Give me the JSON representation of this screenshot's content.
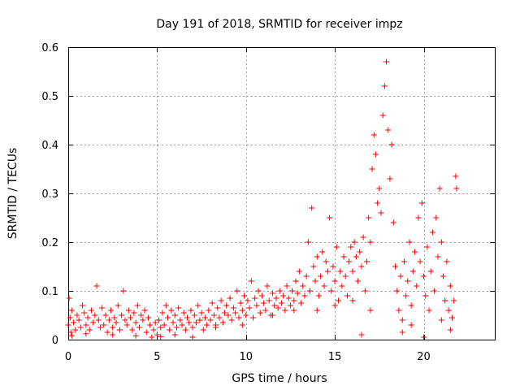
{
  "chart_data": {
    "type": "scatter",
    "title": "Day 191 of 2018, SRMTID for receiver impz",
    "xlabel": "GPS time / hours",
    "ylabel": "SRMTID / TECUs",
    "xlim": [
      0,
      24
    ],
    "ylim": [
      0,
      0.6
    ],
    "x_ticks": [
      0,
      5,
      10,
      15,
      20
    ],
    "x_tick_labels": [
      "0",
      "5",
      "10",
      "15",
      "20"
    ],
    "y_ticks": [
      0,
      0.1,
      0.2,
      0.3,
      0.4,
      0.5,
      0.6
    ],
    "y_tick_labels": [
      "0",
      "0.1",
      "0.2",
      "0.3",
      "0.4",
      "0.5",
      "0.6"
    ],
    "grid": true,
    "marker": "+",
    "series": [
      {
        "name": "SRMTID",
        "color": "#ff0000",
        "points": [
          [
            0.0,
            0.03
          ],
          [
            0.05,
            0.085
          ],
          [
            0.1,
            0.045
          ],
          [
            0.15,
            0.015
          ],
          [
            0.2,
            0.06
          ],
          [
            0.3,
            0.035
          ],
          [
            0.4,
            0.02
          ],
          [
            0.5,
            0.05
          ],
          [
            0.6,
            0.04
          ],
          [
            0.7,
            0.025
          ],
          [
            0.8,
            0.07
          ],
          [
            0.9,
            0.055
          ],
          [
            1.0,
            0.03
          ],
          [
            1.1,
            0.045
          ],
          [
            1.2,
            0.02
          ],
          [
            1.3,
            0.06
          ],
          [
            1.4,
            0.035
          ],
          [
            1.5,
            0.05
          ],
          [
            1.6,
            0.11
          ],
          [
            1.7,
            0.04
          ],
          [
            1.8,
            0.025
          ],
          [
            1.9,
            0.065
          ],
          [
            2.0,
            0.03
          ],
          [
            2.1,
            0.05
          ],
          [
            2.2,
            0.015
          ],
          [
            2.3,
            0.04
          ],
          [
            2.4,
            0.06
          ],
          [
            2.5,
            0.025
          ],
          [
            2.6,
            0.045
          ],
          [
            2.7,
            0.035
          ],
          [
            2.8,
            0.07
          ],
          [
            2.9,
            0.02
          ],
          [
            3.0,
            0.05
          ],
          [
            3.1,
            0.1
          ],
          [
            3.2,
            0.04
          ],
          [
            3.3,
            0.03
          ],
          [
            3.4,
            0.06
          ],
          [
            3.5,
            0.045
          ],
          [
            3.6,
            0.02
          ],
          [
            3.7,
            0.055
          ],
          [
            3.8,
            0.035
          ],
          [
            3.9,
            0.07
          ],
          [
            4.0,
            0.025
          ],
          [
            4.1,
            0.05
          ],
          [
            4.2,
            0.04
          ],
          [
            4.3,
            0.06
          ],
          [
            4.4,
            0.015
          ],
          [
            4.5,
            0.045
          ],
          [
            4.6,
            0.03
          ],
          [
            4.7,
            0.005
          ],
          [
            4.8,
            0.02
          ],
          [
            4.9,
            0.035
          ],
          [
            5.0,
            0.01
          ],
          [
            5.1,
            0.04
          ],
          [
            5.2,
            0.025
          ],
          [
            5.3,
            0.055
          ],
          [
            5.4,
            0.03
          ],
          [
            5.5,
            0.07
          ],
          [
            5.6,
            0.045
          ],
          [
            5.7,
            0.02
          ],
          [
            5.8,
            0.06
          ],
          [
            5.9,
            0.035
          ],
          [
            6.0,
            0.05
          ],
          [
            6.1,
            0.025
          ],
          [
            6.2,
            0.065
          ],
          [
            6.3,
            0.04
          ],
          [
            6.4,
            0.03
          ],
          [
            6.5,
            0.055
          ],
          [
            6.6,
            0.02
          ],
          [
            6.7,
            0.045
          ],
          [
            6.8,
            0.035
          ],
          [
            6.9,
            0.06
          ],
          [
            7.0,
            0.025
          ],
          [
            7.1,
            0.05
          ],
          [
            7.2,
            0.035
          ],
          [
            7.3,
            0.07
          ],
          [
            7.4,
            0.04
          ],
          [
            7.5,
            0.055
          ],
          [
            7.6,
            0.02
          ],
          [
            7.7,
            0.045
          ],
          [
            7.8,
            0.03
          ],
          [
            7.9,
            0.06
          ],
          [
            8.0,
            0.04
          ],
          [
            8.1,
            0.075
          ],
          [
            8.2,
            0.05
          ],
          [
            8.3,
            0.03
          ],
          [
            8.4,
            0.065
          ],
          [
            8.5,
            0.045
          ],
          [
            8.6,
            0.08
          ],
          [
            8.7,
            0.035
          ],
          [
            8.8,
            0.055
          ],
          [
            8.9,
            0.07
          ],
          [
            9.0,
            0.05
          ],
          [
            9.1,
            0.085
          ],
          [
            9.2,
            0.04
          ],
          [
            9.3,
            0.065
          ],
          [
            9.4,
            0.055
          ],
          [
            9.5,
            0.1
          ],
          [
            9.6,
            0.045
          ],
          [
            9.7,
            0.075
          ],
          [
            9.8,
            0.06
          ],
          [
            9.9,
            0.09
          ],
          [
            10.0,
            0.05
          ],
          [
            10.1,
            0.08
          ],
          [
            10.2,
            0.065
          ],
          [
            10.3,
            0.12
          ],
          [
            10.4,
            0.045
          ],
          [
            10.5,
            0.085
          ],
          [
            10.6,
            0.07
          ],
          [
            10.7,
            0.1
          ],
          [
            10.8,
            0.055
          ],
          [
            10.9,
            0.09
          ],
          [
            11.0,
            0.075
          ],
          [
            11.1,
            0.06
          ],
          [
            11.2,
            0.11
          ],
          [
            11.3,
            0.08
          ],
          [
            11.4,
            0.05
          ],
          [
            11.5,
            0.095
          ],
          [
            11.6,
            0.07
          ],
          [
            11.7,
            0.085
          ],
          [
            11.8,
            0.065
          ],
          [
            11.9,
            0.1
          ],
          [
            12.0,
            0.075
          ],
          [
            12.1,
            0.09
          ],
          [
            12.2,
            0.06
          ],
          [
            12.3,
            0.11
          ],
          [
            12.4,
            0.085
          ],
          [
            12.5,
            0.07
          ],
          [
            12.6,
            0.1
          ],
          [
            12.7,
            0.08
          ],
          [
            12.8,
            0.12
          ],
          [
            12.9,
            0.095
          ],
          [
            13.0,
            0.14
          ],
          [
            13.1,
            0.075
          ],
          [
            13.2,
            0.11
          ],
          [
            13.3,
            0.09
          ],
          [
            13.4,
            0.13
          ],
          [
            13.5,
            0.2
          ],
          [
            13.6,
            0.1
          ],
          [
            13.7,
            0.27
          ],
          [
            13.8,
            0.15
          ],
          [
            13.9,
            0.12
          ],
          [
            14.0,
            0.17
          ],
          [
            14.1,
            0.09
          ],
          [
            14.2,
            0.13
          ],
          [
            14.3,
            0.18
          ],
          [
            14.4,
            0.11
          ],
          [
            14.5,
            0.16
          ],
          [
            14.6,
            0.14
          ],
          [
            14.7,
            0.25
          ],
          [
            14.8,
            0.1
          ],
          [
            14.9,
            0.15
          ],
          [
            15.0,
            0.12
          ],
          [
            15.1,
            0.19
          ],
          [
            15.2,
            0.08
          ],
          [
            15.3,
            0.14
          ],
          [
            15.4,
            0.11
          ],
          [
            15.5,
            0.17
          ],
          [
            15.6,
            0.13
          ],
          [
            15.7,
            0.09
          ],
          [
            15.8,
            0.16
          ],
          [
            15.9,
            0.19
          ],
          [
            16.0,
            0.14
          ],
          [
            16.1,
            0.2
          ],
          [
            16.2,
            0.17
          ],
          [
            16.3,
            0.12
          ],
          [
            16.4,
            0.18
          ],
          [
            16.5,
            0.15
          ],
          [
            16.6,
            0.21
          ],
          [
            16.7,
            0.1
          ],
          [
            16.8,
            0.16
          ],
          [
            16.9,
            0.25
          ],
          [
            17.0,
            0.2
          ],
          [
            17.1,
            0.35
          ],
          [
            17.2,
            0.42
          ],
          [
            17.3,
            0.38
          ],
          [
            17.4,
            0.28
          ],
          [
            17.5,
            0.31
          ],
          [
            17.6,
            0.26
          ],
          [
            17.7,
            0.46
          ],
          [
            17.8,
            0.52
          ],
          [
            17.9,
            0.57
          ],
          [
            18.0,
            0.43
          ],
          [
            18.1,
            0.33
          ],
          [
            18.2,
            0.4
          ],
          [
            18.3,
            0.24
          ],
          [
            18.4,
            0.15
          ],
          [
            18.5,
            0.1
          ],
          [
            18.6,
            0.06
          ],
          [
            18.7,
            0.13
          ],
          [
            18.8,
            0.04
          ],
          [
            18.9,
            0.16
          ],
          [
            19.0,
            0.09
          ],
          [
            19.1,
            0.12
          ],
          [
            19.2,
            0.2
          ],
          [
            19.3,
            0.07
          ],
          [
            19.4,
            0.14
          ],
          [
            19.5,
            0.18
          ],
          [
            19.6,
            0.11
          ],
          [
            19.7,
            0.25
          ],
          [
            19.8,
            0.16
          ],
          [
            19.9,
            0.28
          ],
          [
            20.0,
            0.13
          ],
          [
            20.1,
            0.09
          ],
          [
            20.2,
            0.19
          ],
          [
            20.3,
            0.06
          ],
          [
            20.4,
            0.14
          ],
          [
            20.5,
            0.22
          ],
          [
            20.6,
            0.1
          ],
          [
            20.7,
            0.25
          ],
          [
            20.8,
            0.17
          ],
          [
            20.9,
            0.31
          ],
          [
            21.0,
            0.2
          ],
          [
            21.1,
            0.13
          ],
          [
            21.2,
            0.08
          ],
          [
            21.3,
            0.16
          ],
          [
            21.4,
            0.06
          ],
          [
            21.5,
            0.11
          ],
          [
            21.6,
            0.045
          ],
          [
            21.7,
            0.08
          ],
          [
            21.8,
            0.335
          ],
          [
            21.85,
            0.31
          ],
          [
            0.2,
            0.008
          ],
          [
            1.0,
            0.012
          ],
          [
            2.5,
            0.01
          ],
          [
            3.8,
            0.008
          ],
          [
            5.2,
            0.006
          ],
          [
            6.0,
            0.01
          ],
          [
            7.0,
            0.005
          ],
          [
            8.3,
            0.025
          ],
          [
            9.8,
            0.03
          ],
          [
            11.5,
            0.05
          ],
          [
            12.7,
            0.06
          ],
          [
            14.0,
            0.06
          ],
          [
            15.0,
            0.07
          ],
          [
            16.0,
            0.08
          ],
          [
            16.5,
            0.01
          ],
          [
            17.0,
            0.06
          ],
          [
            18.8,
            0.015
          ],
          [
            19.3,
            0.03
          ],
          [
            20.0,
            0.005
          ],
          [
            21.0,
            0.04
          ],
          [
            21.5,
            0.02
          ]
        ]
      }
    ]
  }
}
